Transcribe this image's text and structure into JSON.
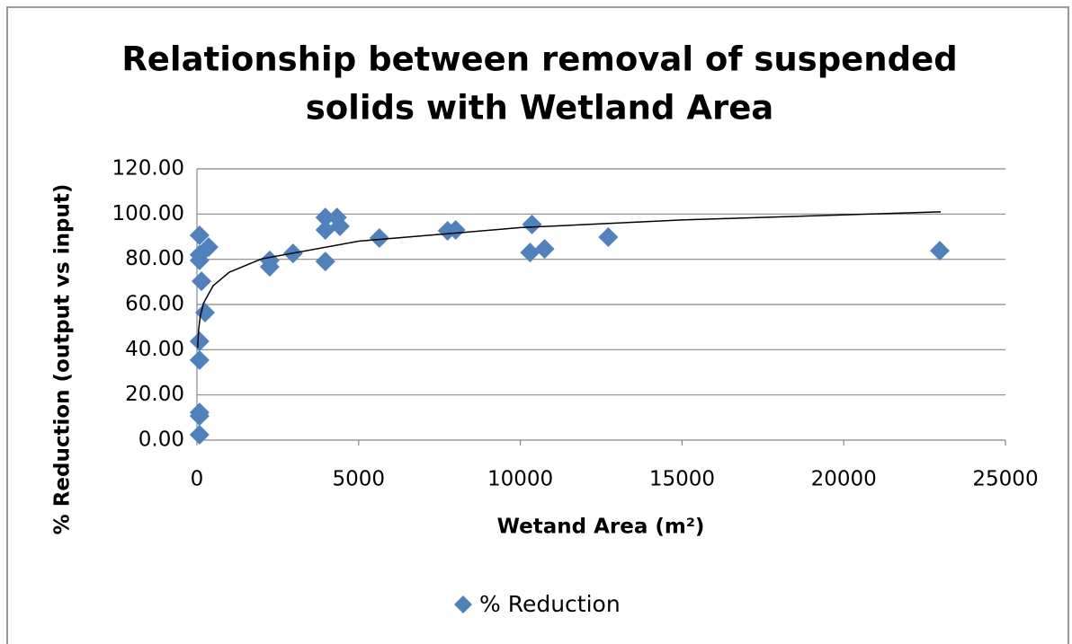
{
  "chart_data": {
    "type": "scatter",
    "title": [
      "Relationship between removal of suspended",
      "solids with Wetland Area"
    ],
    "x_label": "Wetand Area (m²)",
    "y_label": "% Reduction (output vs input)",
    "xlim": [
      0,
      25000
    ],
    "xticks": [
      0,
      5000,
      10000,
      15000,
      20000,
      25000
    ],
    "ylim": [
      0,
      120
    ],
    "yticks": [
      {
        "value": 0,
        "label": "0.00"
      },
      {
        "value": 20,
        "label": "20.00"
      },
      {
        "value": 40,
        "label": "40.00"
      },
      {
        "value": 60,
        "label": "60.00"
      },
      {
        "value": 80,
        "label": "80.00"
      },
      {
        "value": 100,
        "label": "100.00"
      },
      {
        "value": 120,
        "label": "120.00"
      }
    ],
    "grid": true,
    "legend": "bottom",
    "series": [
      {
        "name": "% Reduction",
        "color": "#4f81bd",
        "x": [
          80,
          80,
          80,
          80,
          80,
          250,
          140,
          80,
          80,
          80,
          360,
          2250,
          2250,
          2970,
          3970,
          3970,
          3970,
          4330,
          4420,
          5640,
          7750,
          8000,
          10360,
          10300,
          10750,
          12720,
          22970
        ],
        "values": [
          2.4,
          10.7,
          12.2,
          35.4,
          43.7,
          56.4,
          70.3,
          79.5,
          82,
          90.6,
          85.4,
          79.5,
          76.7,
          82.6,
          79,
          98.5,
          93,
          98.5,
          94.6,
          89.4,
          92.6,
          93,
          95.4,
          83,
          84.6,
          89.8,
          83.8
        ]
      }
    ],
    "trendline": {
      "color": "#000000",
      "x": [
        20,
        50,
        100,
        200,
        500,
        1000,
        2000,
        5000,
        10000,
        15000,
        23000
      ],
      "y": [
        40.8,
        48.6,
        54.6,
        60.5,
        68.3,
        74.3,
        80.2,
        88.0,
        94.0,
        97.4,
        101.0
      ]
    }
  }
}
